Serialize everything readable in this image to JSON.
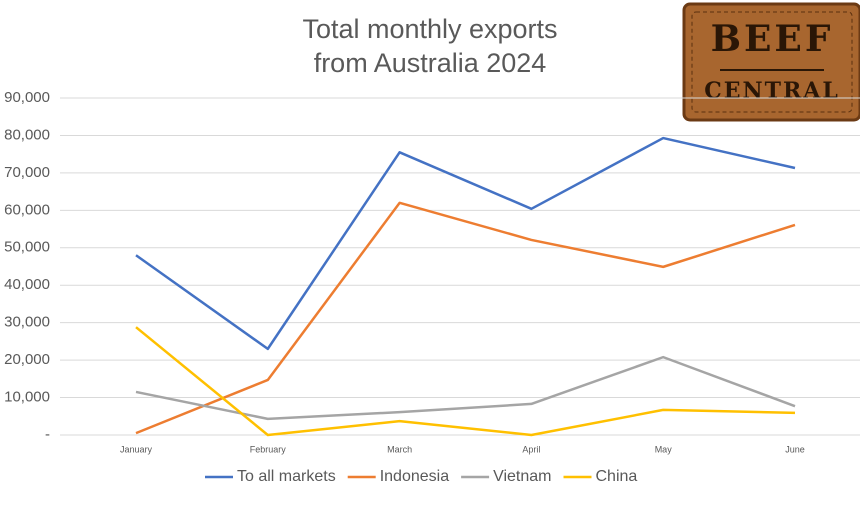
{
  "chart_data": {
    "type": "line",
    "title": "Total monthly exports from Australia 2024",
    "categories": [
      "January",
      "February",
      "March",
      "April",
      "May",
      "June"
    ],
    "series": [
      {
        "name": "To all markets",
        "color": "#4472c4",
        "values": [
          48000,
          23000,
          75500,
          60400,
          79300,
          71300
        ]
      },
      {
        "name": "Indonesia",
        "color": "#ed7d31",
        "values": [
          500,
          14700,
          62000,
          52100,
          44900,
          56100
        ]
      },
      {
        "name": "Vietnam",
        "color": "#a5a5a5",
        "values": [
          11500,
          4300,
          6100,
          8300,
          20800,
          7700
        ]
      },
      {
        "name": "China",
        "color": "#ffc000",
        "values": [
          28800,
          0,
          3700,
          0,
          6700,
          5900
        ]
      }
    ],
    "ylim": [
      0,
      90000
    ],
    "yticks": [
      {
        "value": 0,
        "label": "-"
      },
      {
        "value": 10000,
        "label": "10,000"
      },
      {
        "value": 20000,
        "label": "20,000"
      },
      {
        "value": 30000,
        "label": "30,000"
      },
      {
        "value": 40000,
        "label": "40,000"
      },
      {
        "value": 50000,
        "label": "50,000"
      },
      {
        "value": 60000,
        "label": "60,000"
      },
      {
        "value": 70000,
        "label": "70,000"
      },
      {
        "value": 80000,
        "label": "80,000"
      },
      {
        "value": 90000,
        "label": "90,000"
      }
    ],
    "grid": true,
    "legend": "bottom",
    "logo": {
      "line1": "BEEF",
      "line2": "CENTRAL"
    }
  }
}
